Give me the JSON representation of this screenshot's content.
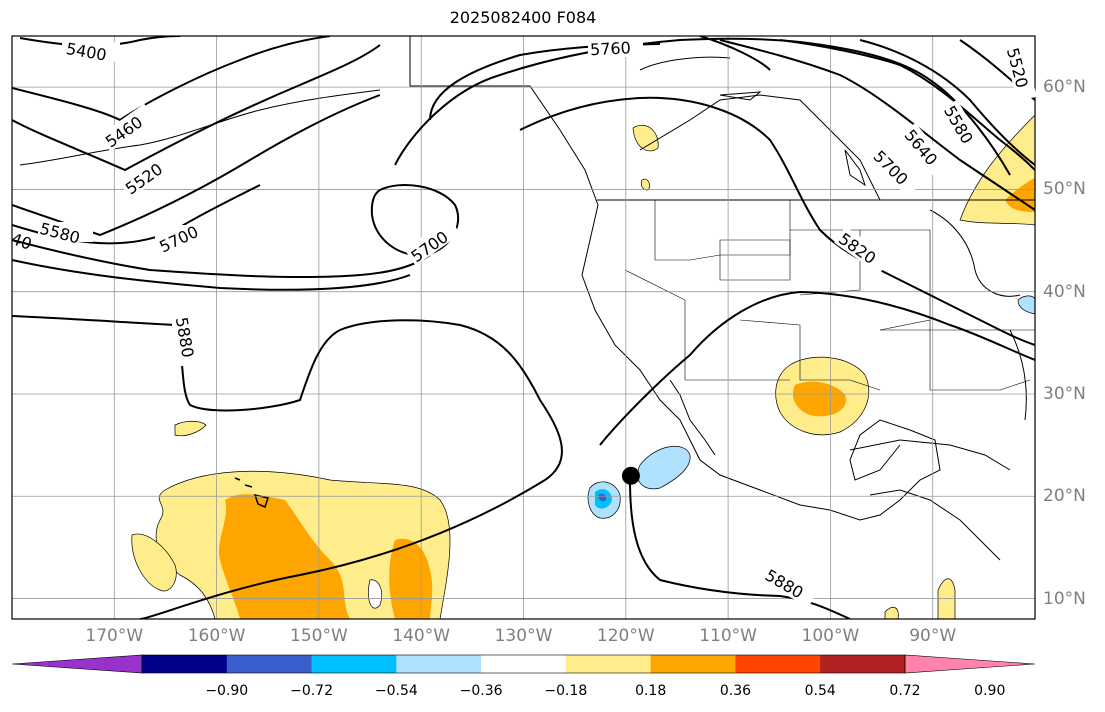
{
  "title": "2025082400 F084",
  "map": {
    "projection": "equirectangular",
    "lon_range": [
      -180,
      -80
    ],
    "lat_range": [
      8,
      65
    ],
    "grid": true,
    "storm_marker": {
      "lat": 22,
      "lon": -119.5
    },
    "lon_ticks": [
      {
        "lon": -170,
        "label": "170°W"
      },
      {
        "lon": -160,
        "label": "160°W"
      },
      {
        "lon": -150,
        "label": "150°W"
      },
      {
        "lon": -140,
        "label": "140°W"
      },
      {
        "lon": -130,
        "label": "130°W"
      },
      {
        "lon": -120,
        "label": "120°W"
      },
      {
        "lon": -110,
        "label": "110°W"
      },
      {
        "lon": -100,
        "label": "100°W"
      },
      {
        "lon": -90,
        "label": "90°W"
      }
    ],
    "lat_ticks": [
      {
        "lat": 60,
        "label": "60°N"
      },
      {
        "lat": 50,
        "label": "50°N"
      },
      {
        "lat": 40,
        "label": "40°N"
      },
      {
        "lat": 30,
        "label": "30°N"
      },
      {
        "lat": 20,
        "label": "20°N"
      },
      {
        "lat": 10,
        "label": "10°N"
      }
    ],
    "contour_labels": [
      "5400",
      "5460",
      "5520",
      "5580",
      "5700",
      "40",
      "5700",
      "5760",
      "5880",
      "5820",
      "5700",
      "5640",
      "5580",
      "5520",
      "5880"
    ]
  },
  "colorbar": {
    "colors": [
      "#9932cc",
      "#00008b",
      "#3a5fcd",
      "#00bfff",
      "#b0e2ff",
      "#ffffff",
      "#ffec8b",
      "#ffa500",
      "#ff4500",
      "#b22222",
      "#ff82ab"
    ],
    "ticks": [
      "−0.90",
      "−0.72",
      "−0.54",
      "−0.36",
      "−0.18",
      "0.18",
      "0.36",
      "0.54",
      "0.72",
      "0.90"
    ]
  }
}
